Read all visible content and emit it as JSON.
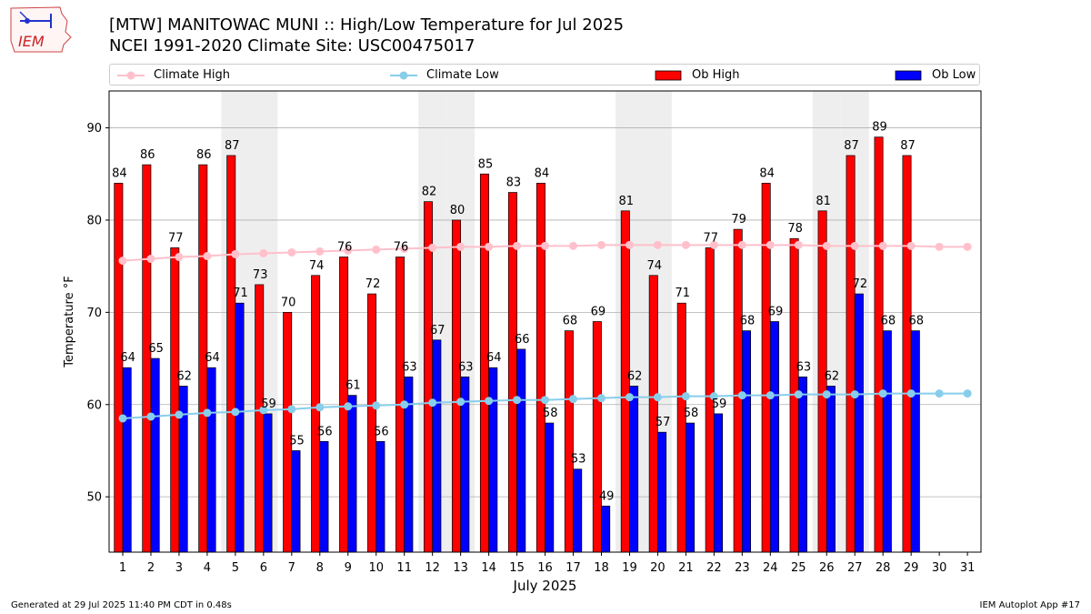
{
  "header": {
    "title_line1": "[MTW] MANITOWAC MUNI :: High/Low Temperature for Jul 2025",
    "title_line2": "NCEI 1991-2020 Climate Site: USC00475017",
    "logo_text": "IEM"
  },
  "legend": {
    "climate_high": "Climate High",
    "climate_low": "Climate Low",
    "ob_high": "Ob High",
    "ob_low": "Ob Low"
  },
  "colors": {
    "ob_high": "#ff0000",
    "ob_low": "#0000ff",
    "climate_high": "#ffc0cb",
    "climate_low": "#87ceeb",
    "weekend_shade": "#eeeeee",
    "grid": "#b0b0b0"
  },
  "footer": {
    "generated": "Generated at 29 Jul 2025 11:40 PM CDT in 0.48s",
    "app": "IEM Autoplot App #17"
  },
  "chart_data": {
    "type": "bar",
    "title": "[MTW] MANITOWAC MUNI :: High/Low Temperature for Jul 2025",
    "subtitle": "NCEI 1991-2020 Climate Site: USC00475017",
    "xlabel": "July 2025",
    "ylabel": "Temperature °F",
    "ylim": [
      44,
      94
    ],
    "yticks": [
      50,
      60,
      70,
      80,
      90
    ],
    "grid": "y",
    "legend_position": "top",
    "categories": [
      1,
      2,
      3,
      4,
      5,
      6,
      7,
      8,
      9,
      10,
      11,
      12,
      13,
      14,
      15,
      16,
      17,
      18,
      19,
      20,
      21,
      22,
      23,
      24,
      25,
      26,
      27,
      28,
      29,
      30,
      31
    ],
    "shaded_days": [
      5,
      6,
      12,
      13,
      19,
      20,
      26,
      27
    ],
    "series": [
      {
        "name": "Ob High",
        "kind": "bar",
        "values": [
          84,
          86,
          77,
          86,
          87,
          73,
          70,
          74,
          76,
          72,
          76,
          82,
          80,
          85,
          83,
          84,
          68,
          69,
          81,
          74,
          71,
          77,
          79,
          84,
          78,
          81,
          87,
          89,
          87,
          null,
          null
        ]
      },
      {
        "name": "Ob Low",
        "kind": "bar",
        "values": [
          64,
          65,
          62,
          64,
          71,
          59,
          55,
          56,
          61,
          56,
          63,
          67,
          63,
          64,
          66,
          58,
          53,
          49,
          62,
          57,
          58,
          59,
          68,
          69,
          63,
          62,
          72,
          68,
          68,
          null,
          null
        ]
      },
      {
        "name": "Climate High",
        "kind": "line",
        "values": [
          75.6,
          75.8,
          76.0,
          76.1,
          76.3,
          76.4,
          76.5,
          76.6,
          76.7,
          76.8,
          76.9,
          77.0,
          77.1,
          77.1,
          77.2,
          77.2,
          77.2,
          77.3,
          77.3,
          77.3,
          77.3,
          77.3,
          77.3,
          77.3,
          77.3,
          77.2,
          77.2,
          77.2,
          77.2,
          77.1,
          77.1
        ]
      },
      {
        "name": "Climate Low",
        "kind": "line",
        "values": [
          58.5,
          58.7,
          58.9,
          59.1,
          59.2,
          59.4,
          59.5,
          59.7,
          59.8,
          59.9,
          60.0,
          60.2,
          60.3,
          60.4,
          60.5,
          60.5,
          60.6,
          60.7,
          60.8,
          60.8,
          60.9,
          60.9,
          61.0,
          61.0,
          61.1,
          61.1,
          61.1,
          61.2,
          61.2,
          61.2,
          61.2
        ]
      }
    ]
  }
}
